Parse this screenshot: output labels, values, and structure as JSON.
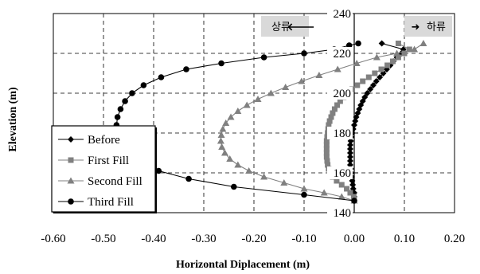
{
  "chart_data": {
    "type": "scatter",
    "title": "",
    "xlabel": "Horizontal Diplacement (m)",
    "ylabel": "Elevation (m)",
    "xlim": [
      -0.6,
      0.2
    ],
    "ylim": [
      140,
      240
    ],
    "x_ticks": [
      -0.6,
      -0.5,
      -0.4,
      -0.3,
      -0.2,
      -0.1,
      0.0,
      0.1,
      0.2
    ],
    "x_tick_labels": [
      "-0.60",
      "-0.50",
      "-0.40",
      "-0.30",
      "-0.20",
      "-0.10",
      "0.00",
      "0.10",
      "0.20"
    ],
    "y_ticks": [
      140,
      160,
      180,
      200,
      220,
      240
    ],
    "y_tick_labels": [
      "140",
      "160",
      "180",
      "200",
      "220",
      "240"
    ],
    "grid": true,
    "legend_position": "bottom-left",
    "annotations": [
      {
        "text": "상류 ←",
        "position": "top-center"
      },
      {
        "text": "➜ 하류",
        "position": "top-right"
      }
    ],
    "series": [
      {
        "name": "Before",
        "marker": "diamond",
        "color": "#000000",
        "points": [
          [
            0.0,
            146
          ],
          [
            0.0,
            148
          ],
          [
            0.0,
            150
          ],
          [
            -0.002,
            152
          ],
          [
            -0.003,
            154
          ],
          [
            -0.004,
            156
          ],
          [
            -0.005,
            158
          ],
          [
            -0.006,
            160
          ],
          [
            -0.007,
            162
          ],
          [
            -0.008,
            164
          ],
          [
            -0.008,
            166
          ],
          [
            -0.008,
            168
          ],
          [
            -0.008,
            170
          ],
          [
            -0.008,
            172
          ],
          [
            -0.008,
            174
          ],
          [
            -0.007,
            176
          ],
          [
            -0.006,
            178
          ],
          [
            -0.004,
            180
          ],
          [
            -0.002,
            182
          ],
          [
            0.0,
            184
          ],
          [
            0.002,
            186
          ],
          [
            0.004,
            188
          ],
          [
            0.007,
            190
          ],
          [
            0.01,
            192
          ],
          [
            0.013,
            194
          ],
          [
            0.017,
            196
          ],
          [
            0.021,
            198
          ],
          [
            0.026,
            200
          ],
          [
            0.032,
            202
          ],
          [
            0.038,
            204
          ],
          [
            0.044,
            206
          ],
          [
            0.051,
            208
          ],
          [
            0.058,
            210
          ],
          [
            0.065,
            212
          ],
          [
            0.072,
            214
          ],
          [
            0.078,
            216
          ],
          [
            0.085,
            218
          ],
          [
            0.094,
            220
          ],
          [
            0.098,
            222
          ],
          [
            0.055,
            225
          ]
        ]
      },
      {
        "name": "First Fill",
        "marker": "square",
        "color": "#808080",
        "points": [
          [
            0.0,
            146
          ],
          [
            -0.001,
            148
          ],
          [
            -0.008,
            150
          ],
          [
            -0.015,
            152
          ],
          [
            -0.025,
            154
          ],
          [
            -0.035,
            156
          ],
          [
            -0.043,
            158
          ],
          [
            -0.048,
            160
          ],
          [
            -0.051,
            162
          ],
          [
            -0.053,
            164
          ],
          [
            -0.054,
            166
          ],
          [
            -0.055,
            168
          ],
          [
            -0.055,
            170
          ],
          [
            -0.055,
            172
          ],
          [
            -0.055,
            174
          ],
          [
            -0.055,
            176
          ],
          [
            -0.054,
            178
          ],
          [
            -0.053,
            180
          ],
          [
            -0.052,
            182
          ],
          [
            -0.051,
            184
          ],
          [
            -0.049,
            186
          ],
          [
            -0.046,
            188
          ],
          [
            -0.043,
            190
          ],
          [
            -0.039,
            192
          ],
          [
            -0.034,
            194
          ],
          [
            -0.028,
            196
          ],
          [
            -0.021,
            198
          ],
          [
            -0.013,
            200
          ],
          [
            -0.004,
            202
          ],
          [
            0.006,
            204
          ],
          [
            0.017,
            206
          ],
          [
            0.029,
            208
          ],
          [
            0.041,
            210
          ],
          [
            0.054,
            212
          ],
          [
            0.066,
            214
          ],
          [
            0.077,
            216
          ],
          [
            0.088,
            218
          ],
          [
            0.1,
            220
          ],
          [
            0.11,
            222
          ],
          [
            0.088,
            225
          ]
        ]
      },
      {
        "name": "Second Fill",
        "marker": "triangle",
        "color": "#808080",
        "points": [
          [
            0.0,
            146
          ],
          [
            -0.025,
            148
          ],
          [
            -0.06,
            150
          ],
          [
            -0.1,
            152
          ],
          [
            -0.14,
            155
          ],
          [
            -0.18,
            158
          ],
          [
            -0.21,
            161
          ],
          [
            -0.232,
            164
          ],
          [
            -0.248,
            167
          ],
          [
            -0.258,
            170
          ],
          [
            -0.264,
            173
          ],
          [
            -0.266,
            176
          ],
          [
            -0.265,
            179
          ],
          [
            -0.262,
            182
          ],
          [
            -0.256,
            185
          ],
          [
            -0.246,
            188
          ],
          [
            -0.232,
            191
          ],
          [
            -0.214,
            194
          ],
          [
            -0.192,
            197
          ],
          [
            -0.166,
            200
          ],
          [
            -0.137,
            203
          ],
          [
            -0.105,
            206
          ],
          [
            -0.07,
            209
          ],
          [
            -0.033,
            212
          ],
          [
            0.005,
            215
          ],
          [
            0.045,
            218
          ],
          [
            0.085,
            220
          ],
          [
            0.12,
            222
          ],
          [
            0.138,
            225
          ]
        ]
      },
      {
        "name": "Third Fill",
        "marker": "circle",
        "color": "#000000",
        "points": [
          [
            0.0,
            146
          ],
          [
            -0.1,
            149
          ],
          [
            -0.24,
            153
          ],
          [
            -0.33,
            157
          ],
          [
            -0.39,
            161
          ],
          [
            -0.43,
            166
          ],
          [
            -0.455,
            170
          ],
          [
            -0.468,
            175
          ],
          [
            -0.473,
            180
          ],
          [
            -0.474,
            184
          ],
          [
            -0.472,
            188
          ],
          [
            -0.466,
            192
          ],
          [
            -0.457,
            196
          ],
          [
            -0.443,
            200
          ],
          [
            -0.42,
            204
          ],
          [
            -0.385,
            208
          ],
          [
            -0.335,
            212
          ],
          [
            -0.265,
            215
          ],
          [
            -0.18,
            218
          ],
          [
            -0.1,
            220
          ],
          [
            -0.04,
            222
          ],
          [
            -0.01,
            224
          ],
          [
            0.008,
            225
          ]
        ]
      }
    ]
  },
  "legend": {
    "items": [
      {
        "label": "Before"
      },
      {
        "label": "First Fill"
      },
      {
        "label": "Second Fill"
      },
      {
        "label": "Third Fill"
      }
    ]
  },
  "annotations": {
    "upstream": "상류",
    "upstream_arrow": "🡐",
    "downstream": "하류",
    "downstream_arrow": "➜"
  }
}
